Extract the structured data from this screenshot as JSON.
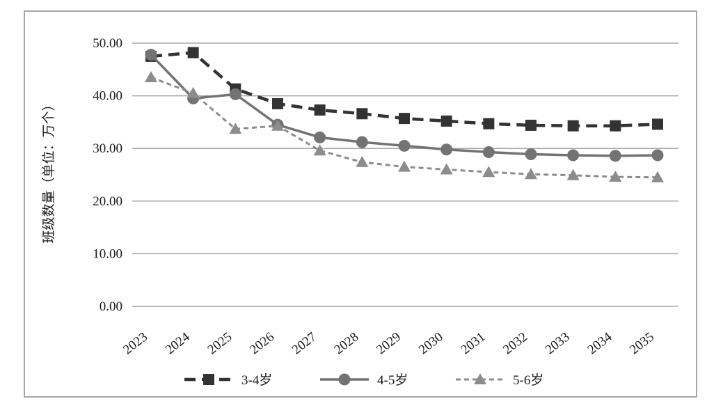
{
  "chart_data": {
    "type": "line",
    "title": "",
    "xlabel": "",
    "ylabel": "班级数量（单位：万个）",
    "categories": [
      "2023",
      "2024",
      "2025",
      "2026",
      "2027",
      "2028",
      "2029",
      "2030",
      "2031",
      "2032",
      "2033",
      "2034",
      "2035"
    ],
    "ylim": [
      0,
      50
    ],
    "yticks": [
      "0.00",
      "10.00",
      "20.00",
      "30.00",
      "40.00",
      "50.00"
    ],
    "grid": true,
    "legend_position": "bottom",
    "series": [
      {
        "name": "3-4岁",
        "color": "#333333",
        "line_style": "dashed",
        "marker": "square",
        "values": [
          47.5,
          48.2,
          41.3,
          38.5,
          37.3,
          36.6,
          35.7,
          35.2,
          34.7,
          34.4,
          34.3,
          34.3,
          34.6
        ]
      },
      {
        "name": "4-5岁",
        "color": "#737373",
        "line_style": "solid",
        "marker": "circle",
        "values": [
          47.8,
          39.5,
          40.3,
          34.5,
          32.1,
          31.2,
          30.5,
          29.8,
          29.3,
          28.9,
          28.7,
          28.6,
          28.7
        ]
      },
      {
        "name": "5-6岁",
        "color": "#8c8c8c",
        "line_style": "dotted",
        "marker": "triangle",
        "values": [
          43.5,
          40.5,
          33.7,
          34.3,
          29.6,
          27.4,
          26.5,
          26.0,
          25.5,
          25.1,
          24.9,
          24.6,
          24.5
        ]
      }
    ]
  }
}
